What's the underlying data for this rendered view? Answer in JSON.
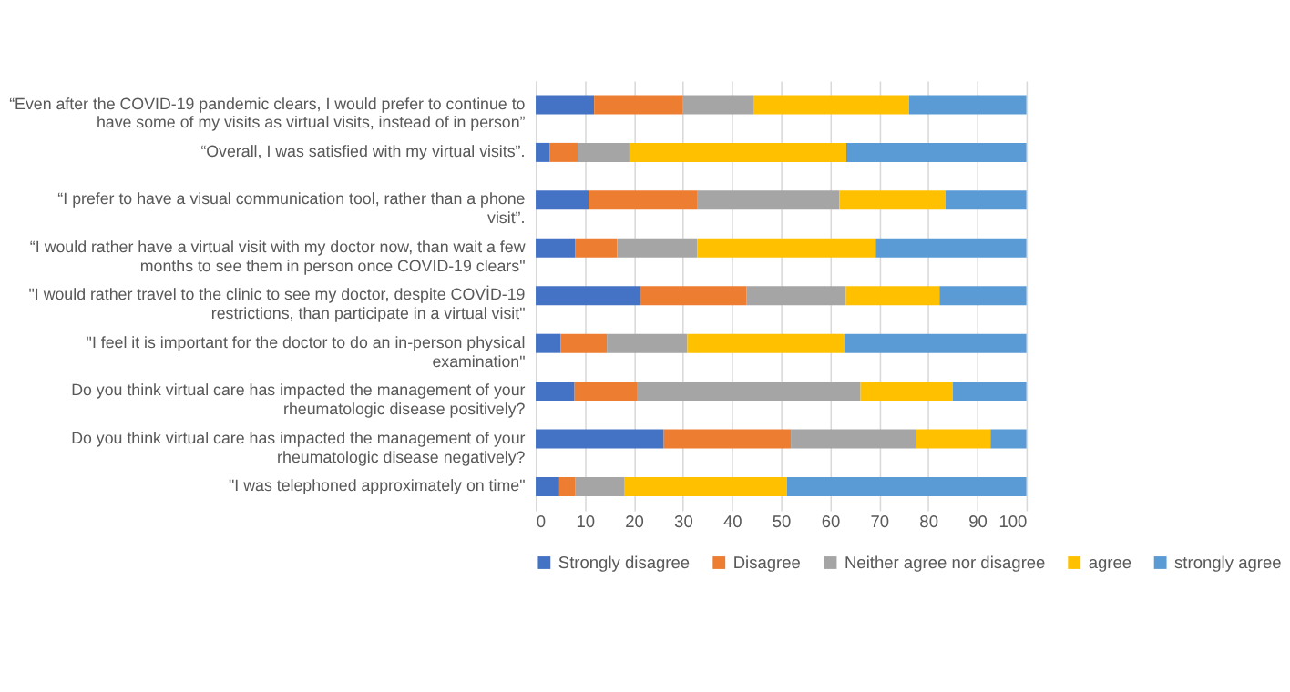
{
  "chart_data": {
    "type": "bar",
    "orientation": "horizontal",
    "stacked": true,
    "categories": [
      "“Even after the COVID-19 pandemic clears, I would prefer to continue to have some of my visits as virtual visits, instead of in person”",
      "“Overall, I was satisfied with my virtual visits”.",
      "“I prefer to have a visual communication tool, rather than a phone visit”.",
      "“I would rather have a virtual visit with my doctor now, than wait a few months to see them in person once COVID-19 clears\"",
      "\"I would rather travel to the clinic to see my doctor, despite COVİD-19 restrictions, than participate in a virtual visit\"",
      "\"I feel it is important for the doctor to do an in-person physical examination\"",
      "Do you think virtual care has impacted the management of your rheumatologic disease positively?",
      "Do you think virtual care has impacted the management of your rheumatologic disease negatively?",
      "\"I was telephoned approximately on time\""
    ],
    "series": [
      {
        "name": "Strongly disagree",
        "color": "#4472c4",
        "values": [
          11.9,
          2.8,
          10.8,
          8.0,
          21.3,
          5.1,
          7.9,
          26.1,
          4.8
        ]
      },
      {
        "name": "Disagree",
        "color": "#ed7d31",
        "values": [
          18.0,
          5.8,
          22.2,
          8.6,
          21.7,
          9.4,
          12.7,
          25.9,
          3.2
        ]
      },
      {
        "name": "Neither agree nor disagree",
        "color": "#a5a5a5",
        "values": [
          14.6,
          10.5,
          28.9,
          16.3,
          20.2,
          16.4,
          45.6,
          25.5,
          10.0
        ]
      },
      {
        "name": "agree",
        "color": "#ffc000",
        "values": [
          31.6,
          44.2,
          21.6,
          36.4,
          19.1,
          32.0,
          18.8,
          15.2,
          33.2
        ]
      },
      {
        "name": "strongly agree",
        "color": "#5b9bd5",
        "values": [
          23.9,
          36.7,
          16.5,
          30.7,
          17.7,
          37.1,
          15.0,
          7.3,
          48.8
        ]
      }
    ],
    "xlim": [
      0,
      100
    ],
    "xticks": [
      0,
      10,
      20,
      30,
      40,
      50,
      60,
      70,
      80,
      90,
      100
    ],
    "grid": "x",
    "legend": "bottom"
  }
}
